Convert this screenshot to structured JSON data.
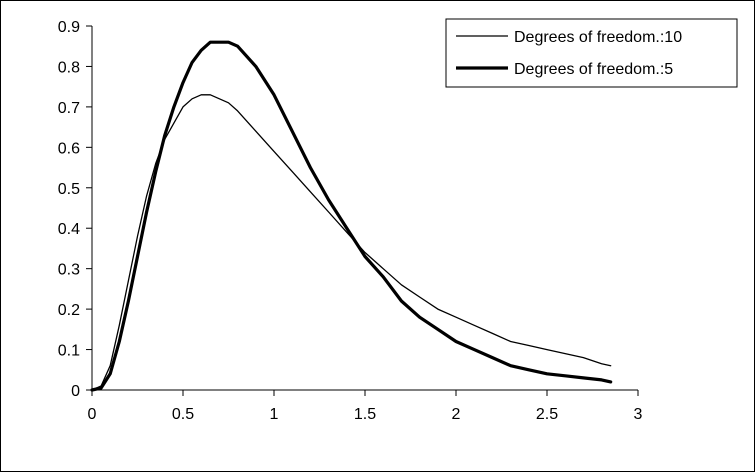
{
  "chart_data": {
    "type": "line",
    "title": "",
    "xlabel": "",
    "ylabel": "",
    "xlim": [
      0,
      3
    ],
    "ylim": [
      0,
      0.9
    ],
    "x_ticks": [
      "0",
      "0.5",
      "1",
      "1.5",
      "2",
      "2.5",
      "3"
    ],
    "y_ticks": [
      "0",
      "0.1",
      "0.2",
      "0.3",
      "0.4",
      "0.5",
      "0.6",
      "0.7",
      "0.8",
      "0.9"
    ],
    "grid": false,
    "legend_position": "top-right",
    "series": [
      {
        "name": "Degrees of freedom.:10",
        "line_weight": "thin",
        "color": "#000000",
        "x": [
          0,
          0.05,
          0.1,
          0.15,
          0.2,
          0.25,
          0.3,
          0.35,
          0.4,
          0.45,
          0.5,
          0.55,
          0.6,
          0.65,
          0.7,
          0.75,
          0.8,
          0.9,
          1.0,
          1.1,
          1.2,
          1.3,
          1.4,
          1.5,
          1.6,
          1.7,
          1.8,
          1.9,
          2.0,
          2.1,
          2.2,
          2.3,
          2.4,
          2.5,
          2.6,
          2.7,
          2.8,
          2.85
        ],
        "y": [
          0,
          0.01,
          0.06,
          0.16,
          0.27,
          0.38,
          0.48,
          0.56,
          0.62,
          0.66,
          0.7,
          0.72,
          0.73,
          0.73,
          0.72,
          0.71,
          0.69,
          0.64,
          0.59,
          0.54,
          0.49,
          0.44,
          0.39,
          0.34,
          0.3,
          0.26,
          0.23,
          0.2,
          0.18,
          0.16,
          0.14,
          0.12,
          0.11,
          0.1,
          0.09,
          0.08,
          0.065,
          0.06
        ]
      },
      {
        "name": "Degrees of freedom.:5",
        "line_weight": "thick",
        "color": "#000000",
        "x": [
          0,
          0.05,
          0.1,
          0.15,
          0.2,
          0.25,
          0.3,
          0.35,
          0.4,
          0.45,
          0.5,
          0.55,
          0.6,
          0.65,
          0.7,
          0.75,
          0.8,
          0.9,
          1.0,
          1.1,
          1.2,
          1.3,
          1.4,
          1.5,
          1.6,
          1.7,
          1.8,
          1.9,
          2.0,
          2.1,
          2.2,
          2.3,
          2.4,
          2.5,
          2.6,
          2.7,
          2.8,
          2.85
        ],
        "y": [
          0,
          0.005,
          0.04,
          0.12,
          0.22,
          0.33,
          0.44,
          0.54,
          0.63,
          0.7,
          0.76,
          0.81,
          0.84,
          0.86,
          0.86,
          0.86,
          0.85,
          0.8,
          0.73,
          0.64,
          0.55,
          0.47,
          0.4,
          0.33,
          0.28,
          0.22,
          0.18,
          0.15,
          0.12,
          0.1,
          0.08,
          0.06,
          0.05,
          0.04,
          0.035,
          0.03,
          0.025,
          0.02
        ]
      }
    ]
  }
}
